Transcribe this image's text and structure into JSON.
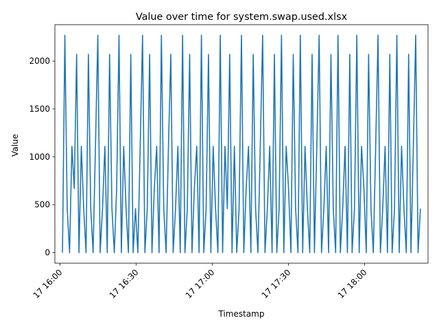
{
  "chart_data": {
    "type": "line",
    "title": "Value over time for system.swap.used.xlsx",
    "xlabel": "Timestamp",
    "ylabel": "Value",
    "x_range": [
      "2000-01-17T15:58:00",
      "2000-01-17T18:25:00"
    ],
    "ylim": [
      -110,
      2380
    ],
    "x_ticks": [
      {
        "label": "17 16:00",
        "t": "2000-01-17T16:00:00"
      },
      {
        "label": "17 16:30",
        "t": "2000-01-17T16:30:00"
      },
      {
        "label": "17 17:00",
        "t": "2000-01-17T17:00:00"
      },
      {
        "label": "17 17:30",
        "t": "2000-01-17T17:30:00"
      },
      {
        "label": "17 18:00",
        "t": "2000-01-17T18:00:00"
      }
    ],
    "y_ticks": [
      0,
      500,
      1000,
      1500,
      2000
    ],
    "grid": false,
    "color": "#1f77b4",
    "series": [
      {
        "x_start": "2000-01-17T16:01:00",
        "x_end": "2000-01-17T18:22:00",
        "values": [
          0,
          2270,
          460,
          0,
          1110,
          670,
          2070,
          0,
          1110,
          460,
          0,
          2070,
          460,
          0,
          1110,
          2270,
          0,
          460,
          1110,
          0,
          2070,
          460,
          0,
          670,
          2270,
          0,
          1110,
          460,
          0,
          2070,
          0,
          460,
          0,
          1110,
          2270,
          0,
          460,
          2070,
          0,
          670,
          1110,
          0,
          2270,
          460,
          0,
          1110,
          2070,
          0,
          460,
          1110,
          0,
          2270,
          0,
          460,
          2070,
          0,
          670,
          1110,
          0,
          2270,
          0,
          460,
          2070,
          0,
          1110,
          460,
          0,
          2270,
          0,
          1110,
          460,
          2070,
          0,
          1110,
          0,
          460,
          2270,
          0,
          670,
          1110,
          0,
          2070,
          460,
          0,
          1110,
          2270,
          0,
          460,
          1110,
          0,
          2070,
          0,
          460,
          2270,
          0,
          1110,
          670,
          0,
          2070,
          460,
          0,
          2270,
          0,
          1110,
          460,
          0,
          2070,
          0,
          1110,
          2270,
          0,
          460,
          1110,
          0,
          2070,
          460,
          0,
          2270,
          0,
          460,
          1110,
          0,
          2070,
          0,
          460,
          2270,
          0,
          1110,
          670,
          0,
          2070,
          460,
          0,
          1110,
          2270,
          0,
          460,
          1110,
          0,
          2070,
          0,
          460,
          2270,
          0,
          1110,
          460,
          0,
          2070,
          0,
          1110,
          2270,
          0,
          460
        ]
      }
    ]
  }
}
